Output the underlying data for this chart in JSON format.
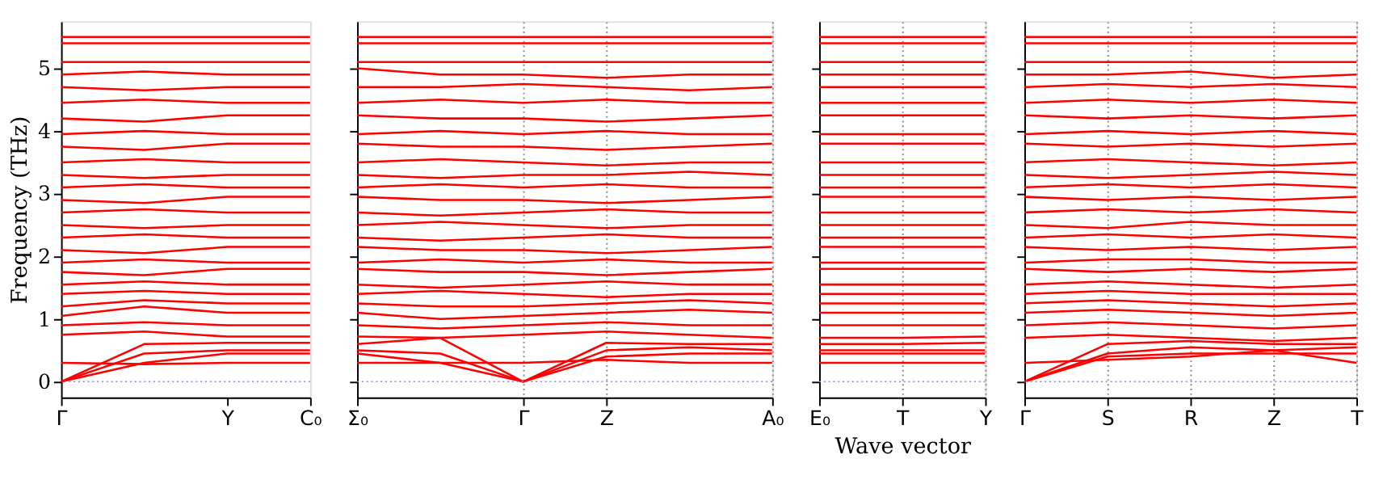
{
  "chart_data": [
    {
      "type": "line",
      "ylabel": "Frequency (THz)",
      "categories": [
        "Γ",
        null,
        "Y",
        "C₀"
      ],
      "ylim": [
        -0.25,
        5.75
      ],
      "yticks": [
        0,
        1,
        2,
        3,
        4,
        5
      ],
      "grid": false,
      "line_style": "solid",
      "legend": false,
      "ref_lines": [
        {
          "axis": "y",
          "value": 0,
          "color": "#8888cc",
          "line_style": "dotted"
        }
      ],
      "series": [
        {
          "color": "#ff0000",
          "values": [
            0,
            0.3,
            0.45,
            0.45
          ]
        },
        {
          "color": "#ff0000",
          "values": [
            0,
            0.45,
            0.5,
            0.5
          ]
        },
        {
          "color": "#ff0000",
          "values": [
            0,
            0.6,
            0.62,
            0.62
          ]
        },
        {
          "color": "#ff0000",
          "values": [
            0.3,
            0.28,
            0.3,
            0.3
          ]
        },
        {
          "color": "#ff0000",
          "values": [
            0.75,
            0.8,
            0.72,
            0.72
          ]
        },
        {
          "color": "#ff0000",
          "values": [
            0.9,
            0.95,
            0.9,
            0.9
          ]
        },
        {
          "color": "#ff0000",
          "values": [
            1.05,
            1.2,
            1.1,
            1.1
          ]
        },
        {
          "color": "#ff0000",
          "values": [
            1.2,
            1.3,
            1.25,
            1.25
          ]
        },
        {
          "color": "#ff0000",
          "values": [
            1.4,
            1.45,
            1.4,
            1.4
          ]
        },
        {
          "color": "#ff0000",
          "values": [
            1.55,
            1.6,
            1.55,
            1.55
          ]
        },
        {
          "color": "#ff0000",
          "values": [
            1.75,
            1.7,
            1.8,
            1.8
          ]
        },
        {
          "color": "#ff0000",
          "values": [
            1.9,
            1.95,
            1.9,
            1.9
          ]
        },
        {
          "color": "#ff0000",
          "values": [
            2.1,
            2.05,
            2.15,
            2.15
          ]
        },
        {
          "color": "#ff0000",
          "values": [
            2.3,
            2.35,
            2.3,
            2.3
          ]
        },
        {
          "color": "#ff0000",
          "values": [
            2.5,
            2.45,
            2.5,
            2.5
          ]
        },
        {
          "color": "#ff0000",
          "values": [
            2.7,
            2.75,
            2.7,
            2.7
          ]
        },
        {
          "color": "#ff0000",
          "values": [
            2.9,
            2.85,
            2.95,
            2.95
          ]
        },
        {
          "color": "#ff0000",
          "values": [
            3.1,
            3.15,
            3.1,
            3.1
          ]
        },
        {
          "color": "#ff0000",
          "values": [
            3.3,
            3.25,
            3.3,
            3.3
          ]
        },
        {
          "color": "#ff0000",
          "values": [
            3.5,
            3.55,
            3.5,
            3.5
          ]
        },
        {
          "color": "#ff0000",
          "values": [
            3.75,
            3.7,
            3.8,
            3.8
          ]
        },
        {
          "color": "#ff0000",
          "values": [
            3.95,
            4.0,
            3.95,
            3.95
          ]
        },
        {
          "color": "#ff0000",
          "values": [
            4.2,
            4.15,
            4.25,
            4.25
          ]
        },
        {
          "color": "#ff0000",
          "values": [
            4.45,
            4.5,
            4.45,
            4.45
          ]
        },
        {
          "color": "#ff0000",
          "values": [
            4.7,
            4.65,
            4.7,
            4.7
          ]
        },
        {
          "color": "#ff0000",
          "values": [
            4.9,
            4.95,
            4.9,
            4.9
          ]
        },
        {
          "color": "#ff0000",
          "values": [
            5.1,
            5.1,
            5.1,
            5.1
          ]
        },
        {
          "color": "#ff0000",
          "values": [
            5.4,
            5.4,
            5.4,
            5.4
          ]
        },
        {
          "color": "#ff0000",
          "values": [
            5.5,
            5.5,
            5.5,
            5.5
          ]
        }
      ]
    },
    {
      "type": "line",
      "categories": [
        "Σ₀",
        null,
        "Γ",
        "Z",
        null,
        "A₀"
      ],
      "ylim": [
        -0.25,
        5.75
      ],
      "yticks": [
        0,
        1,
        2,
        3,
        4,
        5
      ],
      "grid": "x",
      "line_style": "solid",
      "legend": false,
      "tick_labels": "x",
      "ref_lines": [
        {
          "axis": "y",
          "value": 0,
          "color": "#8888cc",
          "line_style": "dotted"
        }
      ],
      "series": [
        {
          "color": "#ff0000",
          "values": [
            0.45,
            0.3,
            0,
            0.4,
            0.45,
            0.45
          ]
        },
        {
          "color": "#ff0000",
          "values": [
            0.5,
            0.45,
            0,
            0.5,
            0.55,
            0.5
          ]
        },
        {
          "color": "#ff0000",
          "values": [
            0.6,
            0.7,
            0,
            0.62,
            0.6,
            0.6
          ]
        },
        {
          "color": "#ff0000",
          "values": [
            0.3,
            0.3,
            0.3,
            0.35,
            0.3,
            0.3
          ]
        },
        {
          "color": "#ff0000",
          "values": [
            0.72,
            0.7,
            0.75,
            0.8,
            0.75,
            0.7
          ]
        },
        {
          "color": "#ff0000",
          "values": [
            0.9,
            0.85,
            0.9,
            0.95,
            0.9,
            0.9
          ]
        },
        {
          "color": "#ff0000",
          "values": [
            1.1,
            1.0,
            1.05,
            1.1,
            1.15,
            1.1
          ]
        },
        {
          "color": "#ff0000",
          "values": [
            1.25,
            1.2,
            1.2,
            1.25,
            1.3,
            1.25
          ]
        },
        {
          "color": "#ff0000",
          "values": [
            1.4,
            1.45,
            1.4,
            1.35,
            1.4,
            1.4
          ]
        },
        {
          "color": "#ff0000",
          "values": [
            1.55,
            1.5,
            1.55,
            1.6,
            1.55,
            1.55
          ]
        },
        {
          "color": "#ff0000",
          "values": [
            1.8,
            1.75,
            1.75,
            1.7,
            1.75,
            1.8
          ]
        },
        {
          "color": "#ff0000",
          "values": [
            1.9,
            1.95,
            1.9,
            1.95,
            1.9,
            1.9
          ]
        },
        {
          "color": "#ff0000",
          "values": [
            2.15,
            2.1,
            2.1,
            2.05,
            2.1,
            2.15
          ]
        },
        {
          "color": "#ff0000",
          "values": [
            2.3,
            2.25,
            2.3,
            2.35,
            2.3,
            2.3
          ]
        },
        {
          "color": "#ff0000",
          "values": [
            2.5,
            2.55,
            2.5,
            2.45,
            2.5,
            2.5
          ]
        },
        {
          "color": "#ff0000",
          "values": [
            2.7,
            2.65,
            2.7,
            2.75,
            2.7,
            2.7
          ]
        },
        {
          "color": "#ff0000",
          "values": [
            2.95,
            2.9,
            2.9,
            2.85,
            2.9,
            2.95
          ]
        },
        {
          "color": "#ff0000",
          "values": [
            3.1,
            3.15,
            3.1,
            3.15,
            3.1,
            3.1
          ]
        },
        {
          "color": "#ff0000",
          "values": [
            3.3,
            3.25,
            3.3,
            3.3,
            3.35,
            3.3
          ]
        },
        {
          "color": "#ff0000",
          "values": [
            3.5,
            3.55,
            3.5,
            3.45,
            3.5,
            3.5
          ]
        },
        {
          "color": "#ff0000",
          "values": [
            3.8,
            3.75,
            3.75,
            3.7,
            3.75,
            3.8
          ]
        },
        {
          "color": "#ff0000",
          "values": [
            3.95,
            4.0,
            3.95,
            4.0,
            3.95,
            3.95
          ]
        },
        {
          "color": "#ff0000",
          "values": [
            4.25,
            4.2,
            4.2,
            4.15,
            4.2,
            4.25
          ]
        },
        {
          "color": "#ff0000",
          "values": [
            4.45,
            4.5,
            4.45,
            4.5,
            4.45,
            4.45
          ]
        },
        {
          "color": "#ff0000",
          "values": [
            4.7,
            4.7,
            4.75,
            4.7,
            4.65,
            4.7
          ]
        },
        {
          "color": "#ff0000",
          "values": [
            5.0,
            4.9,
            4.9,
            4.85,
            4.9,
            4.9
          ]
        },
        {
          "color": "#ff0000",
          "values": [
            5.1,
            5.1,
            5.1,
            5.1,
            5.1,
            5.1
          ]
        },
        {
          "color": "#ff0000",
          "values": [
            5.4,
            5.4,
            5.4,
            5.4,
            5.4,
            5.4
          ]
        },
        {
          "color": "#ff0000",
          "values": [
            5.5,
            5.5,
            5.5,
            5.5,
            5.5,
            5.5
          ]
        }
      ]
    },
    {
      "type": "line",
      "xlabel": "Wave vector",
      "categories": [
        "E₀",
        "T",
        "Y"
      ],
      "ylim": [
        -0.25,
        5.75
      ],
      "yticks": [
        0,
        1,
        2,
        3,
        4,
        5
      ],
      "grid": "x",
      "line_style": "solid",
      "legend": false,
      "tick_labels": "x",
      "ref_lines": [
        {
          "axis": "y",
          "value": 0,
          "color": "#8888cc",
          "line_style": "dotted"
        }
      ],
      "series": [
        {
          "color": "#ff0000",
          "values": [
            0.45,
            0.45,
            0.45
          ]
        },
        {
          "color": "#ff0000",
          "values": [
            0.5,
            0.5,
            0.5
          ]
        },
        {
          "color": "#ff0000",
          "values": [
            0.6,
            0.6,
            0.62
          ]
        },
        {
          "color": "#ff0000",
          "values": [
            0.3,
            0.3,
            0.3
          ]
        },
        {
          "color": "#ff0000",
          "values": [
            0.7,
            0.7,
            0.72
          ]
        },
        {
          "color": "#ff0000",
          "values": [
            0.9,
            0.9,
            0.9
          ]
        },
        {
          "color": "#ff0000",
          "values": [
            1.1,
            1.1,
            1.1
          ]
        },
        {
          "color": "#ff0000",
          "values": [
            1.25,
            1.25,
            1.25
          ]
        },
        {
          "color": "#ff0000",
          "values": [
            1.4,
            1.4,
            1.4
          ]
        },
        {
          "color": "#ff0000",
          "values": [
            1.55,
            1.55,
            1.55
          ]
        },
        {
          "color": "#ff0000",
          "values": [
            1.8,
            1.8,
            1.8
          ]
        },
        {
          "color": "#ff0000",
          "values": [
            1.9,
            1.9,
            1.9
          ]
        },
        {
          "color": "#ff0000",
          "values": [
            2.15,
            2.15,
            2.15
          ]
        },
        {
          "color": "#ff0000",
          "values": [
            2.3,
            2.3,
            2.3
          ]
        },
        {
          "color": "#ff0000",
          "values": [
            2.5,
            2.5,
            2.5
          ]
        },
        {
          "color": "#ff0000",
          "values": [
            2.7,
            2.7,
            2.7
          ]
        },
        {
          "color": "#ff0000",
          "values": [
            2.95,
            2.95,
            2.95
          ]
        },
        {
          "color": "#ff0000",
          "values": [
            3.1,
            3.1,
            3.1
          ]
        },
        {
          "color": "#ff0000",
          "values": [
            3.3,
            3.3,
            3.3
          ]
        },
        {
          "color": "#ff0000",
          "values": [
            3.5,
            3.5,
            3.5
          ]
        },
        {
          "color": "#ff0000",
          "values": [
            3.8,
            3.8,
            3.8
          ]
        },
        {
          "color": "#ff0000",
          "values": [
            3.95,
            3.95,
            3.95
          ]
        },
        {
          "color": "#ff0000",
          "values": [
            4.25,
            4.25,
            4.25
          ]
        },
        {
          "color": "#ff0000",
          "values": [
            4.45,
            4.45,
            4.45
          ]
        },
        {
          "color": "#ff0000",
          "values": [
            4.7,
            4.7,
            4.7
          ]
        },
        {
          "color": "#ff0000",
          "values": [
            4.9,
            4.9,
            4.9
          ]
        },
        {
          "color": "#ff0000",
          "values": [
            5.1,
            5.1,
            5.1
          ]
        },
        {
          "color": "#ff0000",
          "values": [
            5.4,
            5.4,
            5.4
          ]
        },
        {
          "color": "#ff0000",
          "values": [
            5.5,
            5.5,
            5.5
          ]
        }
      ]
    },
    {
      "type": "line",
      "categories": [
        "Γ",
        "S",
        "R",
        "Z",
        "T"
      ],
      "ylim": [
        -0.25,
        5.75
      ],
      "yticks": [
        0,
        1,
        2,
        3,
        4,
        5
      ],
      "grid": "x",
      "line_style": "solid",
      "legend": false,
      "tick_labels": "x",
      "ref_lines": [
        {
          "axis": "y",
          "value": 0,
          "color": "#8888cc",
          "line_style": "dotted"
        }
      ],
      "series": [
        {
          "color": "#ff0000",
          "values": [
            0,
            0.4,
            0.45,
            0.45,
            0.45
          ]
        },
        {
          "color": "#ff0000",
          "values": [
            0,
            0.45,
            0.55,
            0.5,
            0.55
          ]
        },
        {
          "color": "#ff0000",
          "values": [
            0,
            0.6,
            0.65,
            0.6,
            0.6
          ]
        },
        {
          "color": "#ff0000",
          "values": [
            0.3,
            0.35,
            0.4,
            0.5,
            0.3
          ]
        },
        {
          "color": "#ff0000",
          "values": [
            0.7,
            0.75,
            0.7,
            0.65,
            0.7
          ]
        },
        {
          "color": "#ff0000",
          "values": [
            0.9,
            0.95,
            0.9,
            0.85,
            0.9
          ]
        },
        {
          "color": "#ff0000",
          "values": [
            1.1,
            1.15,
            1.1,
            1.05,
            1.1
          ]
        },
        {
          "color": "#ff0000",
          "values": [
            1.25,
            1.3,
            1.25,
            1.2,
            1.25
          ]
        },
        {
          "color": "#ff0000",
          "values": [
            1.4,
            1.45,
            1.4,
            1.4,
            1.4
          ]
        },
        {
          "color": "#ff0000",
          "values": [
            1.55,
            1.6,
            1.55,
            1.5,
            1.55
          ]
        },
        {
          "color": "#ff0000",
          "values": [
            1.8,
            1.75,
            1.8,
            1.75,
            1.8
          ]
        },
        {
          "color": "#ff0000",
          "values": [
            1.9,
            1.95,
            1.95,
            1.9,
            1.9
          ]
        },
        {
          "color": "#ff0000",
          "values": [
            2.15,
            2.1,
            2.15,
            2.1,
            2.15
          ]
        },
        {
          "color": "#ff0000",
          "values": [
            2.3,
            2.35,
            2.3,
            2.35,
            2.3
          ]
        },
        {
          "color": "#ff0000",
          "values": [
            2.5,
            2.45,
            2.55,
            2.5,
            2.5
          ]
        },
        {
          "color": "#ff0000",
          "values": [
            2.7,
            2.75,
            2.7,
            2.75,
            2.7
          ]
        },
        {
          "color": "#ff0000",
          "values": [
            2.95,
            2.9,
            2.95,
            2.9,
            2.95
          ]
        },
        {
          "color": "#ff0000",
          "values": [
            3.1,
            3.15,
            3.1,
            3.15,
            3.1
          ]
        },
        {
          "color": "#ff0000",
          "values": [
            3.3,
            3.25,
            3.3,
            3.35,
            3.3
          ]
        },
        {
          "color": "#ff0000",
          "values": [
            3.5,
            3.55,
            3.5,
            3.45,
            3.5
          ]
        },
        {
          "color": "#ff0000",
          "values": [
            3.8,
            3.75,
            3.8,
            3.75,
            3.8
          ]
        },
        {
          "color": "#ff0000",
          "values": [
            3.95,
            4.0,
            3.95,
            4.0,
            3.95
          ]
        },
        {
          "color": "#ff0000",
          "values": [
            4.25,
            4.2,
            4.25,
            4.2,
            4.25
          ]
        },
        {
          "color": "#ff0000",
          "values": [
            4.45,
            4.5,
            4.45,
            4.5,
            4.45
          ]
        },
        {
          "color": "#ff0000",
          "values": [
            4.7,
            4.75,
            4.7,
            4.75,
            4.7
          ]
        },
        {
          "color": "#ff0000",
          "values": [
            4.9,
            4.9,
            4.95,
            4.85,
            4.9
          ]
        },
        {
          "color": "#ff0000",
          "values": [
            5.1,
            5.1,
            5.1,
            5.1,
            5.1
          ]
        },
        {
          "color": "#ff0000",
          "values": [
            5.4,
            5.4,
            5.4,
            5.4,
            5.4
          ]
        },
        {
          "color": "#ff0000",
          "values": [
            5.5,
            5.5,
            5.5,
            5.5,
            5.5
          ]
        }
      ]
    }
  ]
}
